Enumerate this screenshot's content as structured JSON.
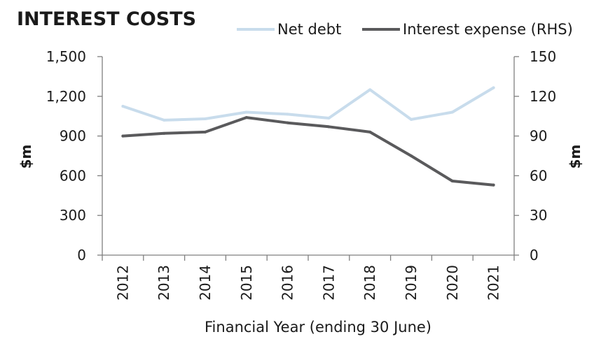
{
  "chart_data": {
    "type": "line",
    "title": "INTEREST COSTS",
    "xlabel": "Financial Year (ending 30 June)",
    "ylabel_left": "$m",
    "ylabel_right": "$m",
    "categories": [
      "2012",
      "2013",
      "2014",
      "2015",
      "2016",
      "2017",
      "2018",
      "2019",
      "2020",
      "2021"
    ],
    "ylim_left": [
      0,
      1500
    ],
    "ylim_right": [
      0,
      150
    ],
    "yticks_left": [
      "0",
      "300",
      "600",
      "900",
      "1,200",
      "1,500"
    ],
    "yticks_right": [
      "0",
      "30",
      "60",
      "90",
      "120",
      "150"
    ],
    "legend_position": "top-right",
    "grid": false,
    "series": [
      {
        "name": "Net debt",
        "axis": "left",
        "color": "#c8dcec",
        "values": [
          1125,
          1020,
          1030,
          1080,
          1065,
          1035,
          1250,
          1025,
          1080,
          1265
        ]
      },
      {
        "name": "Interest expense (RHS)",
        "axis": "right",
        "color": "#5a5a5c",
        "values": [
          90,
          92,
          93,
          104,
          100,
          97,
          93,
          75,
          56,
          53
        ]
      }
    ]
  }
}
